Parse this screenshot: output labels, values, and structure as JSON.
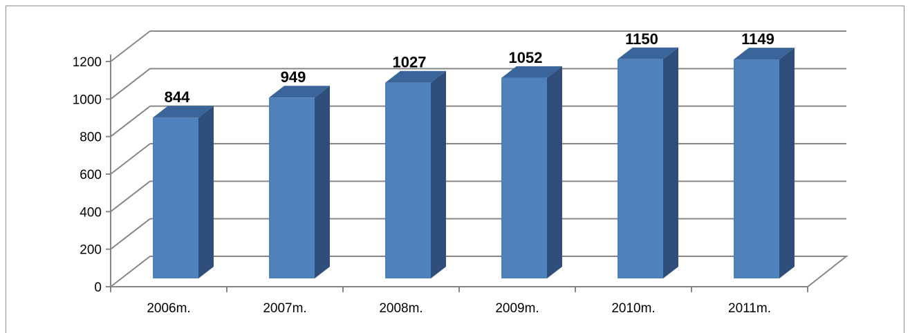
{
  "chart_data": {
    "type": "bar",
    "style": "3d-column",
    "title": "",
    "xlabel": "",
    "ylabel": "",
    "categories": [
      "2006m.",
      "2007m.",
      "2008m.",
      "2009m.",
      "2010m.",
      "2011m."
    ],
    "values": [
      844,
      949,
      1027,
      1052,
      1150,
      1149
    ],
    "data_labels": [
      "844",
      "949",
      "1027",
      "1052",
      "1150",
      "1149"
    ],
    "ylim": [
      0,
      1200
    ],
    "yticks": [
      0,
      200,
      400,
      600,
      800,
      1000,
      1200
    ],
    "ytick_labels": [
      "0",
      "200",
      "400",
      "600",
      "800",
      "1000",
      "1200"
    ],
    "grid": true,
    "legend": "none",
    "colors": {
      "bar_front": "#4F81BD",
      "bar_side": "#2F4F7A",
      "bar_top": "#3A659A",
      "gridline": "#868686",
      "frame": "#8C8C8C"
    }
  }
}
